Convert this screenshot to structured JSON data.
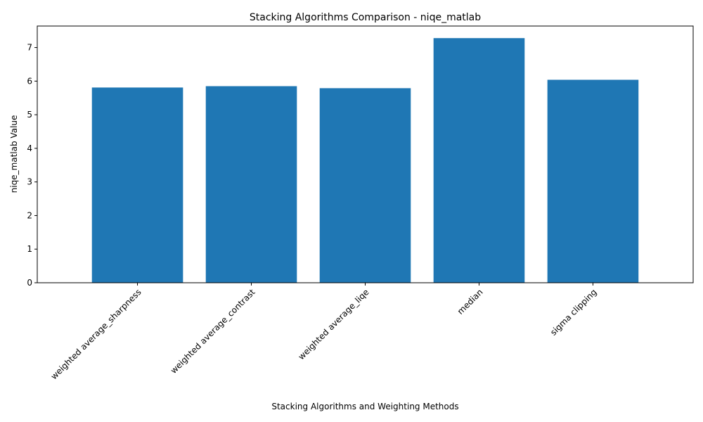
{
  "chart_data": {
    "type": "bar",
    "title": "Stacking Algorithms Comparison - niqe_matlab",
    "xlabel": "Stacking Algorithms and Weighting Methods",
    "ylabel": "niqe_matlab Value",
    "categories": [
      "weighted average_sharpness",
      "weighted average_contrast",
      "weighted average_liqe",
      "median",
      "sigma clipping"
    ],
    "values": [
      5.81,
      5.85,
      5.79,
      7.28,
      6.04
    ],
    "ylim": [
      0,
      7.64
    ],
    "yticks": [
      0,
      1,
      2,
      3,
      4,
      5,
      6,
      7
    ],
    "xtick_rotation_deg": 45,
    "grid": false,
    "legend": "none",
    "bar_color": "#1f77b4"
  }
}
